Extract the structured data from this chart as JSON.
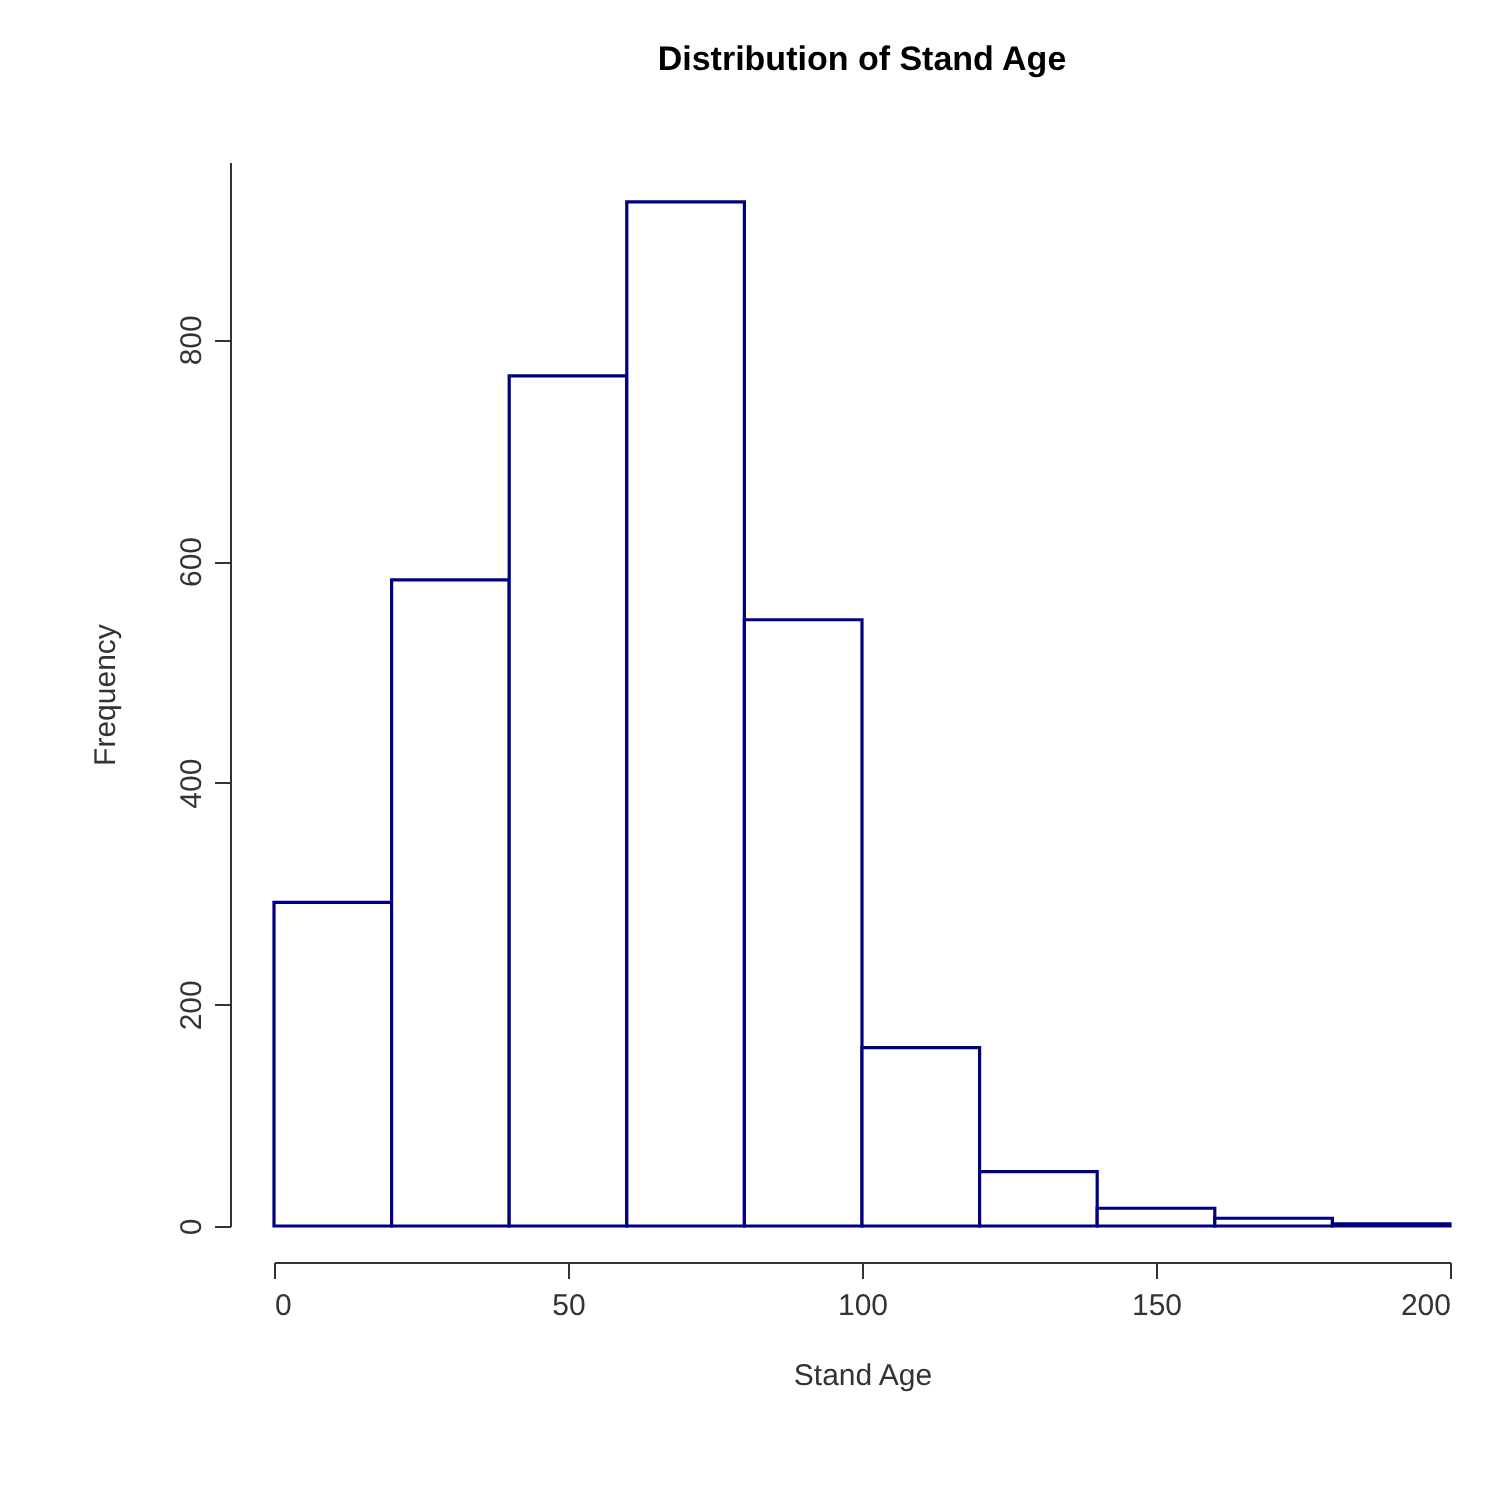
{
  "chart_data": {
    "type": "histogram",
    "title": "Distribution of Stand Age",
    "xlabel": "Stand Age",
    "ylabel": "Frequency",
    "bins": [
      0,
      20,
      40,
      60,
      80,
      100,
      120,
      140,
      160,
      180,
      200
    ],
    "values": [
      292,
      583,
      767,
      924,
      547,
      161,
      49,
      16,
      7,
      2
    ],
    "color": "#000080",
    "xlim": [
      0,
      200
    ],
    "xticks": [
      0,
      50,
      100,
      150,
      200
    ],
    "ylim": [
      0,
      960
    ],
    "yticks": [
      0,
      200,
      400,
      600,
      800
    ],
    "grid": false
  }
}
